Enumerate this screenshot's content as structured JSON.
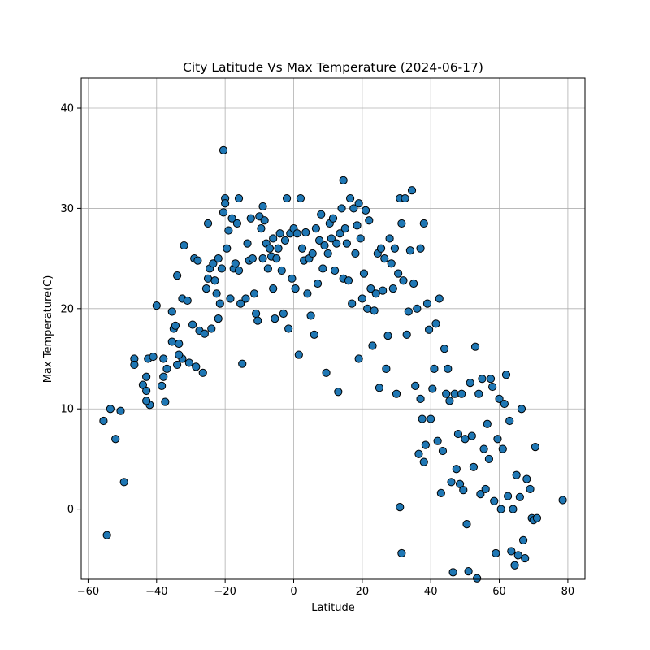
{
  "chart_data": {
    "type": "scatter",
    "title": "City Latitude Vs Max Temperature (2024-06-17)",
    "xlabel": "Latitude",
    "ylabel": "Max Temperature(C)",
    "xlim": [
      -62,
      85
    ],
    "ylim": [
      -7,
      43
    ],
    "xticks": [
      -60,
      -40,
      -20,
      0,
      20,
      40,
      60,
      80
    ],
    "yticks": [
      0,
      10,
      20,
      30,
      40
    ],
    "grid": true,
    "marker_color": "#1f77b4",
    "edge_color": "#000000",
    "points": [
      [
        -55.5,
        8.8
      ],
      [
        -53.5,
        10.0
      ],
      [
        -52.0,
        7.0
      ],
      [
        -50.5,
        9.8
      ],
      [
        -49.5,
        2.7
      ],
      [
        -54.5,
        -2.6
      ],
      [
        -46.5,
        15.0
      ],
      [
        -46.5,
        14.4
      ],
      [
        -44.0,
        12.4
      ],
      [
        -43.0,
        11.8
      ],
      [
        -42.5,
        15.0
      ],
      [
        -42.0,
        10.4
      ],
      [
        -43.0,
        10.8
      ],
      [
        -43.0,
        13.2
      ],
      [
        -41.0,
        15.2
      ],
      [
        -40.0,
        20.3
      ],
      [
        -38.5,
        12.3
      ],
      [
        -38.0,
        15.0
      ],
      [
        -37.0,
        14.0
      ],
      [
        -37.5,
        10.7
      ],
      [
        -38.0,
        13.2
      ],
      [
        -35.5,
        19.7
      ],
      [
        -35.0,
        18.0
      ],
      [
        -35.5,
        16.7
      ],
      [
        -34.5,
        18.3
      ],
      [
        -34.0,
        23.3
      ],
      [
        -33.5,
        16.5
      ],
      [
        -32.5,
        15.0
      ],
      [
        -34.0,
        14.4
      ],
      [
        -33.5,
        15.4
      ],
      [
        -32.5,
        21.0
      ],
      [
        -32.0,
        26.3
      ],
      [
        -31.0,
        20.8
      ],
      [
        -30.5,
        14.6
      ],
      [
        -29.5,
        18.4
      ],
      [
        -29.0,
        25.0
      ],
      [
        -28.0,
        24.8
      ],
      [
        -28.5,
        14.2
      ],
      [
        -27.5,
        17.8
      ],
      [
        -26.5,
        13.6
      ],
      [
        -26.0,
        17.5
      ],
      [
        -25.5,
        22.0
      ],
      [
        -25.0,
        23.0
      ],
      [
        -25.0,
        28.5
      ],
      [
        -24.5,
        24.0
      ],
      [
        -24.0,
        18.0
      ],
      [
        -23.5,
        24.5
      ],
      [
        -23.0,
        22.8
      ],
      [
        -22.5,
        21.5
      ],
      [
        -22.0,
        25.0
      ],
      [
        -22.0,
        19.0
      ],
      [
        -21.5,
        20.5
      ],
      [
        -21.0,
        24.0
      ],
      [
        -20.5,
        29.6
      ],
      [
        -20.5,
        35.8
      ],
      [
        -20.0,
        31.0
      ],
      [
        -20.0,
        30.5
      ],
      [
        -19.5,
        26.0
      ],
      [
        -19.0,
        27.8
      ],
      [
        -18.5,
        21.0
      ],
      [
        -18.0,
        29.0
      ],
      [
        -17.5,
        24.0
      ],
      [
        -17.0,
        24.5
      ],
      [
        -16.5,
        28.5
      ],
      [
        -16.0,
        31.0
      ],
      [
        -16.0,
        23.8
      ],
      [
        -15.5,
        20.5
      ],
      [
        -15.0,
        14.5
      ],
      [
        -14.0,
        21.0
      ],
      [
        -13.5,
        26.5
      ],
      [
        -13.0,
        24.8
      ],
      [
        -12.5,
        29.0
      ],
      [
        -12.0,
        25.0
      ],
      [
        -11.5,
        21.5
      ],
      [
        -11.0,
        19.5
      ],
      [
        -10.5,
        18.8
      ],
      [
        -10.0,
        29.2
      ],
      [
        -9.5,
        28.0
      ],
      [
        -9.0,
        30.2
      ],
      [
        -9.0,
        25.0
      ],
      [
        -8.5,
        28.8
      ],
      [
        -8.0,
        26.5
      ],
      [
        -7.5,
        24.0
      ],
      [
        -7.0,
        26.0
      ],
      [
        -6.5,
        25.2
      ],
      [
        -6.0,
        27.0
      ],
      [
        -6.0,
        22.0
      ],
      [
        -5.5,
        19.0
      ],
      [
        -5.0,
        25.0
      ],
      [
        -4.5,
        26.0
      ],
      [
        -4.0,
        27.5
      ],
      [
        -3.5,
        23.8
      ],
      [
        -3.0,
        19.5
      ],
      [
        -2.5,
        26.8
      ],
      [
        -2.0,
        31.0
      ],
      [
        -1.5,
        18.0
      ],
      [
        -1.0,
        27.5
      ],
      [
        -0.5,
        23.0
      ],
      [
        0.0,
        28.0
      ],
      [
        0.5,
        22.0
      ],
      [
        1.0,
        27.5
      ],
      [
        1.5,
        15.4
      ],
      [
        2.0,
        31.0
      ],
      [
        2.5,
        26.0
      ],
      [
        3.0,
        24.8
      ],
      [
        3.5,
        27.6
      ],
      [
        4.0,
        21.5
      ],
      [
        4.5,
        25.0
      ],
      [
        5.0,
        19.3
      ],
      [
        5.5,
        25.5
      ],
      [
        6.0,
        17.4
      ],
      [
        6.5,
        28.0
      ],
      [
        7.0,
        22.5
      ],
      [
        7.5,
        26.8
      ],
      [
        8.0,
        29.4
      ],
      [
        8.5,
        24.0
      ],
      [
        9.0,
        26.3
      ],
      [
        9.5,
        13.6
      ],
      [
        10.0,
        25.5
      ],
      [
        10.5,
        28.5
      ],
      [
        11.0,
        27.0
      ],
      [
        11.5,
        29.0
      ],
      [
        12.0,
        23.8
      ],
      [
        12.5,
        26.5
      ],
      [
        13.0,
        11.7
      ],
      [
        13.5,
        27.5
      ],
      [
        14.0,
        30.0
      ],
      [
        14.5,
        32.8
      ],
      [
        14.5,
        23.0
      ],
      [
        15.0,
        28.0
      ],
      [
        15.5,
        26.5
      ],
      [
        16.0,
        22.8
      ],
      [
        16.5,
        31.0
      ],
      [
        17.0,
        20.5
      ],
      [
        17.5,
        30.0
      ],
      [
        18.0,
        25.5
      ],
      [
        18.5,
        28.3
      ],
      [
        19.0,
        15.0
      ],
      [
        19.0,
        30.5
      ],
      [
        19.5,
        27.0
      ],
      [
        20.0,
        21.0
      ],
      [
        20.5,
        23.5
      ],
      [
        21.0,
        29.8
      ],
      [
        21.5,
        20.0
      ],
      [
        22.0,
        28.8
      ],
      [
        22.5,
        22.0
      ],
      [
        23.0,
        16.3
      ],
      [
        23.5,
        19.8
      ],
      [
        24.0,
        21.5
      ],
      [
        24.5,
        25.5
      ],
      [
        25.0,
        12.1
      ],
      [
        25.5,
        26.0
      ],
      [
        26.0,
        21.8
      ],
      [
        26.5,
        25.0
      ],
      [
        27.0,
        14.0
      ],
      [
        27.5,
        17.3
      ],
      [
        28.0,
        27.0
      ],
      [
        28.5,
        24.5
      ],
      [
        29.0,
        22.0
      ],
      [
        29.5,
        26.0
      ],
      [
        30.0,
        11.5
      ],
      [
        30.5,
        23.5
      ],
      [
        31.0,
        0.2
      ],
      [
        31.0,
        31.0
      ],
      [
        31.5,
        -4.4
      ],
      [
        31.5,
        28.5
      ],
      [
        32.0,
        22.8
      ],
      [
        32.5,
        31.0
      ],
      [
        33.0,
        17.4
      ],
      [
        33.5,
        19.7
      ],
      [
        34.0,
        25.8
      ],
      [
        34.5,
        31.8
      ],
      [
        35.0,
        22.5
      ],
      [
        35.5,
        12.3
      ],
      [
        36.0,
        20.0
      ],
      [
        36.5,
        5.5
      ],
      [
        37.0,
        26.0
      ],
      [
        37.0,
        11.0
      ],
      [
        37.5,
        9.0
      ],
      [
        38.0,
        4.7
      ],
      [
        38.0,
        28.5
      ],
      [
        38.5,
        6.4
      ],
      [
        39.0,
        20.5
      ],
      [
        39.5,
        17.9
      ],
      [
        40.0,
        9.0
      ],
      [
        40.5,
        12.0
      ],
      [
        41.0,
        14.0
      ],
      [
        41.5,
        18.5
      ],
      [
        42.0,
        6.8
      ],
      [
        42.5,
        21.0
      ],
      [
        43.0,
        1.6
      ],
      [
        43.5,
        5.8
      ],
      [
        44.0,
        16.0
      ],
      [
        44.5,
        11.5
      ],
      [
        45.0,
        14.0
      ],
      [
        45.5,
        10.8
      ],
      [
        46.0,
        2.7
      ],
      [
        46.5,
        -6.3
      ],
      [
        47.0,
        11.5
      ],
      [
        47.5,
        4.0
      ],
      [
        48.0,
        7.5
      ],
      [
        48.5,
        2.5
      ],
      [
        49.0,
        11.5
      ],
      [
        49.5,
        1.9
      ],
      [
        50.0,
        7.0
      ],
      [
        50.5,
        -1.5
      ],
      [
        51.0,
        -6.2
      ],
      [
        51.5,
        12.6
      ],
      [
        52.0,
        7.3
      ],
      [
        52.5,
        4.2
      ],
      [
        53.0,
        16.2
      ],
      [
        53.5,
        -6.9
      ],
      [
        54.0,
        11.5
      ],
      [
        54.5,
        1.5
      ],
      [
        55.0,
        13.0
      ],
      [
        55.5,
        6.0
      ],
      [
        56.0,
        2.0
      ],
      [
        56.5,
        8.5
      ],
      [
        57.0,
        5.0
      ],
      [
        57.5,
        13.0
      ],
      [
        58.0,
        12.2
      ],
      [
        58.5,
        0.8
      ],
      [
        59.0,
        -4.4
      ],
      [
        59.5,
        7.0
      ],
      [
        60.0,
        11.0
      ],
      [
        60.5,
        0.0
      ],
      [
        61.0,
        6.0
      ],
      [
        61.5,
        10.5
      ],
      [
        62.0,
        13.4
      ],
      [
        62.5,
        1.3
      ],
      [
        63.0,
        8.8
      ],
      [
        63.5,
        -4.2
      ],
      [
        64.0,
        0.0
      ],
      [
        64.5,
        -5.6
      ],
      [
        65.0,
        3.4
      ],
      [
        65.5,
        -4.6
      ],
      [
        66.0,
        1.2
      ],
      [
        66.5,
        10.0
      ],
      [
        67.0,
        -3.1
      ],
      [
        67.5,
        -4.9
      ],
      [
        68.0,
        3.0
      ],
      [
        69.0,
        2.0
      ],
      [
        69.5,
        -0.9
      ],
      [
        70.0,
        -1.1
      ],
      [
        70.5,
        6.2
      ],
      [
        71.0,
        -0.9
      ],
      [
        78.5,
        0.9
      ]
    ]
  }
}
